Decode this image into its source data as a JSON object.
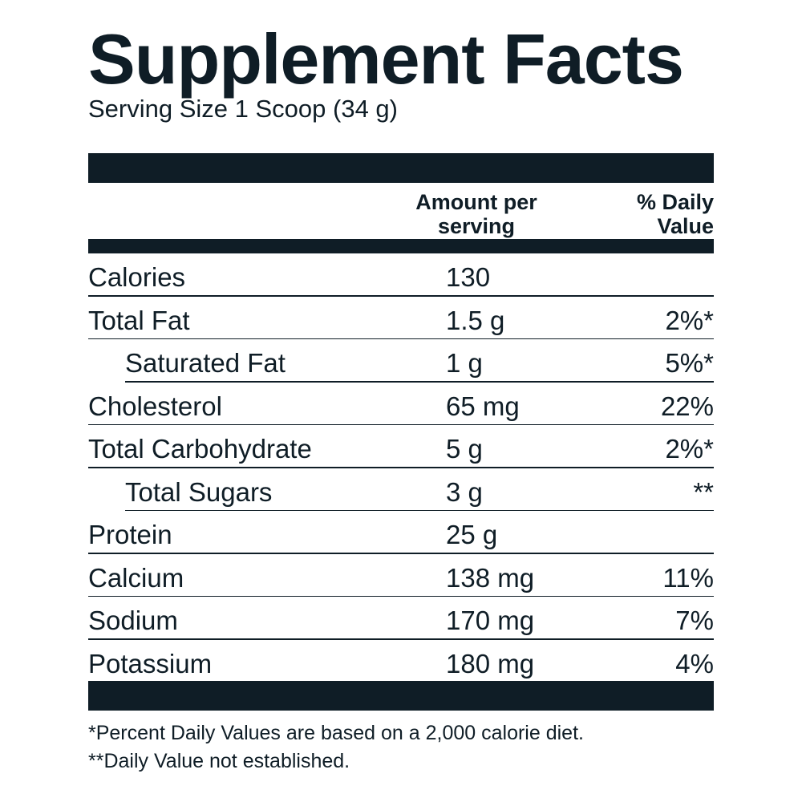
{
  "title": "Supplement Facts",
  "serving_size": "Serving Size 1 Scoop (34 g)",
  "columns": {
    "amount": "Amount per\nserving",
    "daily_value": "% Daily\nValue"
  },
  "rows": [
    {
      "name": "Calories",
      "amount": "130",
      "dv": ""
    },
    {
      "name": "Total Fat",
      "amount": "1.5 g",
      "dv": "2%*"
    },
    {
      "name": "Saturated Fat",
      "amount": "1 g",
      "dv": "5%*"
    },
    {
      "name": "Cholesterol",
      "amount": "65 mg",
      "dv": "22%"
    },
    {
      "name": "Total Carbohydrate",
      "amount": "5 g",
      "dv": "2%*"
    },
    {
      "name": "Total Sugars",
      "amount": "3 g",
      "dv": "**"
    },
    {
      "name": "Protein",
      "amount": "25 g",
      "dv": ""
    },
    {
      "name": "Calcium",
      "amount": "138 mg",
      "dv": "11%"
    },
    {
      "name": "Sodium",
      "amount": "170 mg",
      "dv": "7%"
    },
    {
      "name": "Potassium",
      "amount": "180 mg",
      "dv": "4%"
    }
  ],
  "footnotes": [
    "*Percent Daily Values are based on a 2,000 calorie diet.",
    "**Daily Value not established."
  ]
}
